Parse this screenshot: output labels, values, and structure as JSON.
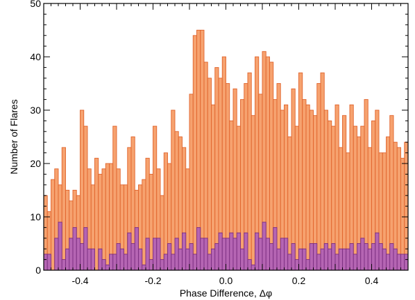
{
  "chart_data": {
    "type": "bar",
    "xlabel": "Phase Difference, Δφ",
    "ylabel": "Number of Flares",
    "xlim": [
      -0.5,
      0.5
    ],
    "ylim": [
      0,
      50
    ],
    "x_ticks": [
      -0.4,
      -0.2,
      0.0,
      0.2,
      0.4
    ],
    "x_tick_labels": [
      "-0.4",
      "-0.2",
      "0.0",
      "0.2",
      "0.4"
    ],
    "y_ticks": [
      0,
      10,
      20,
      30,
      40,
      50
    ],
    "y_tick_labels": [
      "0",
      "10",
      "20",
      "30",
      "40",
      "50"
    ],
    "bin_width": 0.01,
    "bin_start": -0.5,
    "grid": false,
    "series": [
      {
        "values": [
          14,
          11,
          17,
          19,
          16,
          23,
          15,
          13,
          15,
          14,
          30,
          27,
          19,
          16,
          21,
          18,
          19,
          20,
          20,
          27,
          19,
          16,
          16,
          23,
          25,
          15,
          16,
          17,
          21,
          18,
          27,
          19,
          14,
          22,
          20,
          30,
          26,
          25,
          23,
          19,
          33,
          44,
          45,
          45,
          39,
          36,
          31,
          38,
          36,
          40,
          35,
          28,
          34,
          27,
          32,
          35,
          37,
          29,
          40,
          33,
          41,
          40,
          39,
          32,
          35,
          30,
          31,
          25,
          34,
          27,
          37,
          32,
          31,
          30,
          29,
          35,
          37,
          30,
          28,
          27,
          31,
          23,
          29,
          22,
          31,
          27,
          25,
          27,
          32,
          23,
          28,
          30,
          22,
          22,
          25,
          29,
          24,
          23,
          21,
          24
        ],
        "color": "#f6a26f",
        "edge_color": "#e0632c"
      },
      {
        "values": [
          3,
          3,
          0,
          6,
          9,
          2,
          4,
          6,
          8,
          6,
          5,
          8,
          4,
          4,
          0,
          4,
          2,
          1,
          3,
          3,
          5,
          4,
          3,
          7,
          5,
          8,
          4,
          1,
          6,
          2,
          6,
          6,
          2,
          3,
          5,
          3,
          6,
          4,
          7,
          4,
          5,
          3,
          8,
          6,
          6,
          3,
          4,
          5,
          7,
          6,
          6,
          7,
          6,
          7,
          4,
          7,
          2,
          1,
          7,
          6,
          9,
          6,
          5,
          8,
          4,
          6,
          6,
          3,
          5,
          2,
          4,
          4,
          2,
          5,
          5,
          3,
          4,
          5,
          4,
          5,
          3,
          4,
          4,
          4,
          5,
          3,
          5,
          6,
          5,
          4,
          5,
          7,
          5,
          4,
          3,
          5,
          4,
          3,
          3,
          3
        ],
        "color": "#b565b3",
        "edge_color": "#7a2d80"
      }
    ]
  }
}
